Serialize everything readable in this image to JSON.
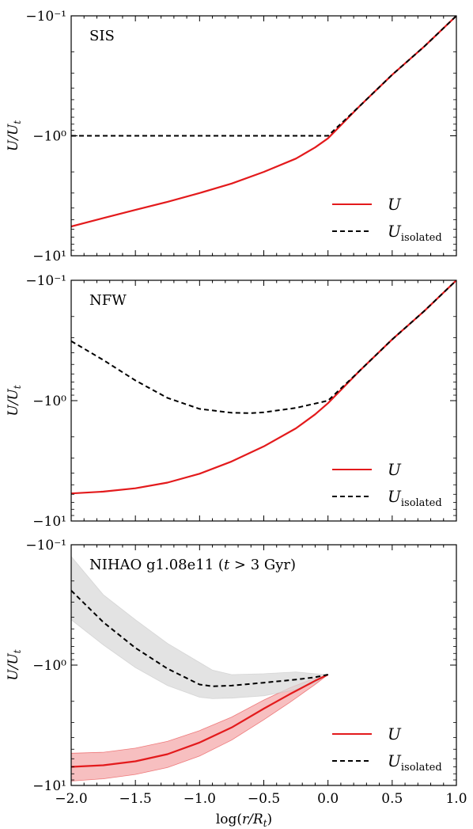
{
  "chart_data": [
    {
      "type": "line",
      "title": "SIS",
      "ylabel": "U/U_t",
      "xlabel": "",
      "xlim": [
        -2.0,
        1.0
      ],
      "yscale": "symlog-negative",
      "ylim": [
        -10,
        -0.1
      ],
      "yticks": [
        -0.1,
        -1,
        -10
      ],
      "ytick_labels": [
        "−10⁻¹",
        "−10⁰",
        "−10¹"
      ],
      "legend": {
        "position": "lower-right",
        "entries": [
          "U",
          "U_isolated"
        ]
      },
      "series": [
        {
          "name": "U",
          "color": "#e31a1c",
          "style": "solid",
          "x": [
            -2.0,
            -1.75,
            -1.5,
            -1.25,
            -1.0,
            -0.75,
            -0.5,
            -0.25,
            -0.1,
            0.0,
            0.25,
            0.5,
            0.75,
            1.0
          ],
          "y": [
            -5.7,
            -4.85,
            -4.15,
            -3.55,
            -3.0,
            -2.5,
            -2.0,
            -1.55,
            -1.25,
            -1.05,
            -0.56,
            -0.31,
            -0.18,
            -0.1
          ]
        },
        {
          "name": "U_isolated",
          "color": "#000000",
          "style": "dashed",
          "x": [
            -2.0,
            -1.5,
            -1.0,
            -0.5,
            0.0,
            0.25,
            0.5,
            0.75,
            1.0
          ],
          "y": [
            -1.0,
            -1.0,
            -1.0,
            -1.0,
            -1.0,
            -0.56,
            -0.31,
            -0.18,
            -0.1
          ]
        }
      ]
    },
    {
      "type": "line",
      "title": "NFW",
      "ylabel": "U/U_t",
      "xlabel": "",
      "xlim": [
        -2.0,
        1.0
      ],
      "yscale": "symlog-negative",
      "ylim": [
        -10,
        -0.1
      ],
      "yticks": [
        -0.1,
        -1,
        -10
      ],
      "ytick_labels": [
        "−10⁻¹",
        "−10⁰",
        "−10¹"
      ],
      "legend": {
        "position": "lower-right",
        "entries": [
          "U",
          "U_isolated"
        ]
      },
      "series": [
        {
          "name": "U",
          "color": "#e31a1c",
          "style": "solid",
          "x": [
            -2.0,
            -1.75,
            -1.5,
            -1.25,
            -1.0,
            -0.75,
            -0.5,
            -0.25,
            -0.1,
            0.0,
            0.25,
            0.5,
            0.75,
            1.0
          ],
          "y": [
            -5.9,
            -5.7,
            -5.35,
            -4.8,
            -4.05,
            -3.2,
            -2.4,
            -1.7,
            -1.3,
            -1.05,
            -0.56,
            -0.31,
            -0.18,
            -0.1
          ]
        },
        {
          "name": "U_isolated",
          "color": "#000000",
          "style": "dashed",
          "x": [
            -2.0,
            -1.75,
            -1.5,
            -1.25,
            -1.0,
            -0.75,
            -0.6,
            -0.5,
            -0.25,
            0.0,
            0.25,
            0.5,
            0.75,
            1.0
          ],
          "y": [
            -0.32,
            -0.46,
            -0.68,
            -0.95,
            -1.17,
            -1.26,
            -1.27,
            -1.25,
            -1.15,
            -1.0,
            -0.56,
            -0.31,
            -0.18,
            -0.1
          ]
        }
      ]
    },
    {
      "type": "line",
      "title": "NIHAO g1.08e11 (t > 3 Gyr)",
      "ylabel": "U/U_t",
      "xlabel": "log(r/R_t)",
      "xlim": [
        -2.0,
        1.0
      ],
      "xticks": [
        -2.0,
        -1.5,
        -1.0,
        -0.5,
        0.0,
        0.5,
        1.0
      ],
      "xtick_labels": [
        "−2.0",
        "−1.5",
        "−1.0",
        "−0.5",
        "0.0",
        "0.5",
        "1.0"
      ],
      "yscale": "symlog-negative",
      "ylim": [
        -10,
        -0.1
      ],
      "yticks": [
        -0.1,
        -1,
        -10
      ],
      "ytick_labels": [
        "−10⁻¹",
        "−10⁰",
        "−10¹"
      ],
      "legend": {
        "position": "lower-right",
        "entries": [
          "U",
          "U_isolated"
        ]
      },
      "series": [
        {
          "name": "U",
          "color": "#e31a1c",
          "style": "solid",
          "x": [
            -2.0,
            -1.75,
            -1.5,
            -1.25,
            -1.0,
            -0.75,
            -0.5,
            -0.3,
            -0.1,
            0.0
          ],
          "y": [
            -7.0,
            -6.8,
            -6.3,
            -5.5,
            -4.4,
            -3.3,
            -2.3,
            -1.75,
            -1.35,
            -1.2
          ],
          "band_upper": [
            -5.4,
            -5.3,
            -4.9,
            -4.3,
            -3.5,
            -2.7,
            -1.95,
            -1.55,
            -1.28,
            -1.2
          ],
          "band_lower": [
            -9.2,
            -8.8,
            -8.1,
            -7.1,
            -5.7,
            -4.2,
            -2.85,
            -2.05,
            -1.45,
            -1.2
          ]
        },
        {
          "name": "U_isolated",
          "color": "#000000",
          "style": "dashed",
          "band_color": "#d9d9d9",
          "x": [
            -2.0,
            -1.75,
            -1.5,
            -1.25,
            -1.0,
            -0.9,
            -0.75,
            -0.5,
            -0.25,
            -0.1,
            0.0
          ],
          "y": [
            -0.24,
            -0.44,
            -0.72,
            -1.07,
            -1.45,
            -1.5,
            -1.48,
            -1.4,
            -1.32,
            -1.26,
            -1.2
          ],
          "band_upper": [
            -0.125,
            -0.26,
            -0.42,
            -0.66,
            -0.95,
            -1.1,
            -1.2,
            -1.18,
            -1.14,
            -1.18,
            -1.2
          ],
          "band_lower": [
            -0.42,
            -0.68,
            -1.05,
            -1.48,
            -1.85,
            -1.9,
            -1.88,
            -1.8,
            -1.6,
            -1.4,
            -1.2
          ]
        }
      ]
    }
  ]
}
